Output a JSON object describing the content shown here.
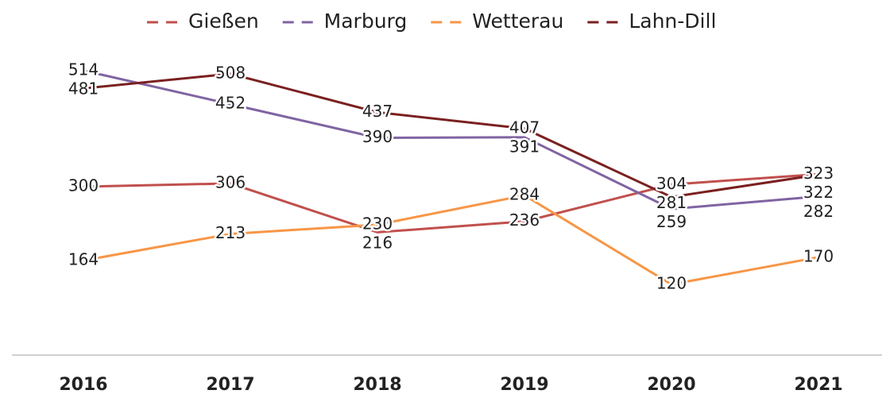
{
  "chart_data": {
    "type": "line",
    "categories": [
      "2016",
      "2017",
      "2018",
      "2019",
      "2020",
      "2021"
    ],
    "series": [
      {
        "name": "Gießen",
        "color": "#c0504d",
        "values": [
          300,
          306,
          216,
          236,
          304,
          323
        ]
      },
      {
        "name": "Marburg",
        "color": "#8064a2",
        "values": [
          514,
          452,
          390,
          391,
          259,
          282
        ]
      },
      {
        "name": "Wetterau",
        "color": "#f79646",
        "values": [
          164,
          213,
          230,
          284,
          120,
          170
        ]
      },
      {
        "name": "Lahn-Dill",
        "color": "#7b2020",
        "values": [
          481,
          508,
          437,
          407,
          281,
          322
        ]
      }
    ],
    "ylim": [
      0,
      600
    ],
    "legend": "top"
  }
}
